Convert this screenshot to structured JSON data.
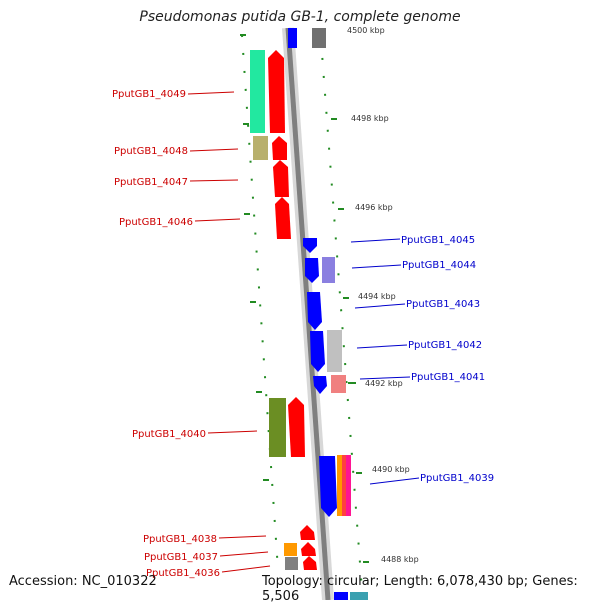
{
  "title": "Pseudomonas putida GB-1, complete genome",
  "footer": {
    "accession": "Accession: NC_010322",
    "summary": "Topology: circular; Length: 6,078,430 bp; Genes: 5,506"
  },
  "ticks": [
    "4500 kbp",
    "4498 kbp",
    "4496 kbp",
    "4494 kbp",
    "4492 kbp",
    "4490 kbp",
    "4488 kbp"
  ],
  "genes_left": [
    {
      "id": "PputGB1_4049",
      "color": "#22e8a0"
    },
    {
      "id": "PputGB1_4048",
      "color": "#b8b06c"
    },
    {
      "id": "PputGB1_4047",
      "color": "#ff0000"
    },
    {
      "id": "PputGB1_4046",
      "color": "#ff0000"
    },
    {
      "id": "PputGB1_4040",
      "color": "#6b8e23"
    },
    {
      "id": "PputGB1_4038",
      "color": "#ff0000"
    },
    {
      "id": "PputGB1_4037",
      "color": "#ff9900"
    },
    {
      "id": "PputGB1_4036",
      "color": "#808080"
    }
  ],
  "genes_right": [
    {
      "id": "PputGB1_4045",
      "color": "#0000ff"
    },
    {
      "id": "PputGB1_4044",
      "color": "#8a7fe0"
    },
    {
      "id": "PputGB1_4043",
      "color": "#0000ff"
    },
    {
      "id": "PputGB1_4042",
      "color": "#c0c0c0"
    },
    {
      "id": "PputGB1_4041",
      "color": "#f08080"
    },
    {
      "id": "PputGB1_4039",
      "color": "#ff1493"
    }
  ],
  "colors": {
    "forward_strand": "#ff0000",
    "reverse_strand": "#0000ff",
    "backbone": "#808080",
    "tick_marks": "#228b22",
    "left_labels": "#cc0000",
    "right_labels": "#0000cc"
  }
}
